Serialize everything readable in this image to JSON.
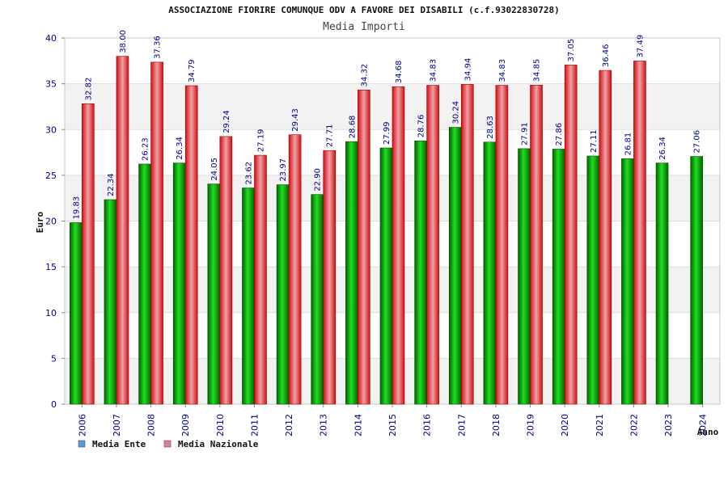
{
  "chart_data": {
    "type": "bar",
    "title": "ASSOCIAZIONE FIORIRE COMUNQUE ODV A FAVORE DEI DISABILI (c.f.93022830728)",
    "subtitle": "Media Importi",
    "xlabel": "Anno",
    "ylabel": "Euro",
    "ylim": [
      0,
      40
    ],
    "yticks": [
      0,
      5,
      10,
      15,
      20,
      25,
      30,
      35,
      40
    ],
    "grid": true,
    "legend_position": "bottom-left",
    "categories": [
      "2006",
      "2007",
      "2008",
      "2009",
      "2010",
      "2011",
      "2012",
      "2013",
      "2014",
      "2015",
      "2016",
      "2017",
      "2018",
      "2019",
      "2020",
      "2021",
      "2022",
      "2023",
      "2024"
    ],
    "series": [
      {
        "name": "Media Ente",
        "color": "#00a000",
        "legend_color": "#5b9bd5",
        "values": [
          19.83,
          22.34,
          26.23,
          26.34,
          24.05,
          23.62,
          23.97,
          22.9,
          28.68,
          27.99,
          28.76,
          30.24,
          28.63,
          27.91,
          27.86,
          27.11,
          26.81,
          26.34,
          27.06
        ],
        "labels": [
          "19.83",
          "22.34",
          "26.23",
          "26.34",
          "24.05",
          "23.62",
          "23.97",
          "22.90",
          "28.68",
          "27.99",
          "28.76",
          "30.24",
          "28.63",
          "27.91",
          "27.86",
          "27.11",
          "26.81",
          "26.34",
          "27.06"
        ]
      },
      {
        "name": "Media Nazionale",
        "color": "#e82020",
        "legend_color": "#e07aa8",
        "values": [
          32.82,
          38.0,
          37.36,
          34.79,
          29.24,
          27.19,
          29.43,
          27.71,
          34.32,
          34.68,
          34.83,
          34.94,
          34.83,
          34.85,
          37.05,
          36.46,
          37.49,
          null,
          null
        ],
        "labels": [
          "32.82",
          "38.00",
          "37.36",
          "34.79",
          "29.24",
          "27.19",
          "29.43",
          "27.71",
          "34.32",
          "34.68",
          "34.83",
          "34.94",
          "34.83",
          "34.85",
          "37.05",
          "36.46",
          "37.49",
          null,
          null
        ]
      }
    ]
  }
}
